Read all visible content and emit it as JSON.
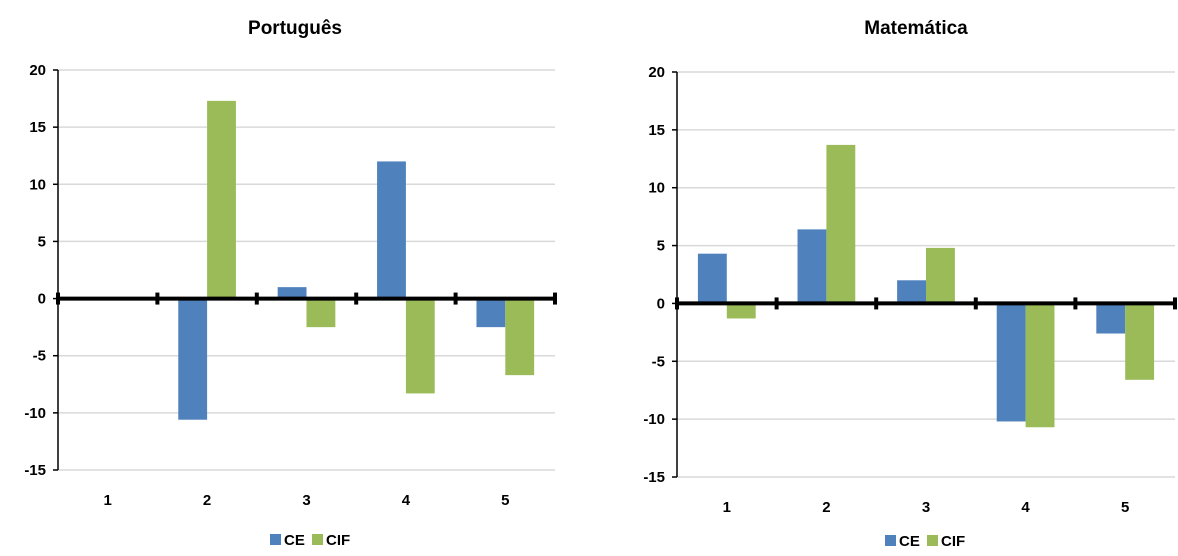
{
  "colors": {
    "CE": "#4f81bd",
    "CIF": "#9bbb59",
    "grid": "#d9d9d9",
    "axis": "#000000"
  },
  "chart_data": [
    {
      "type": "bar",
      "title": "Português",
      "categories": [
        "1",
        "2",
        "3",
        "4",
        "5"
      ],
      "series": [
        {
          "name": "CE",
          "values": [
            0,
            -10.6,
            1.0,
            12.0,
            -2.5
          ]
        },
        {
          "name": "CIF",
          "values": [
            0,
            17.3,
            -2.5,
            -8.3,
            -6.7
          ]
        }
      ],
      "ylim": [
        -15,
        20
      ],
      "yticks": [
        "20",
        "15",
        "10",
        "5",
        "0",
        "-5",
        "-10",
        "-15"
      ],
      "grid": true,
      "legend": "bottom",
      "xlabel": "",
      "ylabel": ""
    },
    {
      "type": "bar",
      "title": "Matemática",
      "categories": [
        "1",
        "2",
        "3",
        "4",
        "5"
      ],
      "series": [
        {
          "name": "CE",
          "values": [
            4.3,
            6.4,
            2.0,
            -10.2,
            -2.6
          ]
        },
        {
          "name": "CIF",
          "values": [
            -1.3,
            13.7,
            4.8,
            -10.7,
            -6.6
          ]
        }
      ],
      "ylim": [
        -15,
        20
      ],
      "yticks": [
        "20",
        "15",
        "10",
        "5",
        "0",
        "-5",
        "-10",
        "-15"
      ],
      "grid": true,
      "legend": "bottom",
      "xlabel": "",
      "ylabel": ""
    }
  ]
}
